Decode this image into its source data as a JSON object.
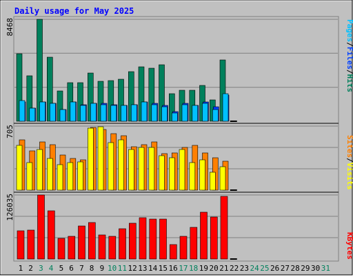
{
  "colors": {
    "background": "#c0c0c0",
    "title": "#0000ff",
    "hits": "#00805c",
    "files": "#0040ff",
    "pages": "#00c0ff",
    "visits": "#ffff00",
    "sites": "#ff8000",
    "kbytes": "#ff0000",
    "weekend_label": "#00805c",
    "weekday_label": "#000000",
    "grid": "#808080",
    "separator": "#000000"
  },
  "chart_data": [
    {
      "type": "bar",
      "title": "Daily usage for May 2025",
      "ymax_label": "8468",
      "ylim": [
        0,
        8468
      ],
      "grid": true,
      "legend_placement": "right",
      "legend_separator": "/",
      "categories": [
        "1",
        "2",
        "3",
        "4",
        "5",
        "6",
        "7",
        "8",
        "9",
        "10",
        "11",
        "12",
        "13",
        "14",
        "15",
        "16",
        "17",
        "18",
        "19",
        "20",
        "21",
        "22",
        "23",
        "24",
        "25",
        "26",
        "27",
        "28",
        "29",
        "30",
        "31"
      ],
      "weekend_days": [
        "3",
        "4",
        "10",
        "11",
        "17",
        "18",
        "24",
        "25",
        "31"
      ],
      "series": [
        {
          "name": "Hits",
          "color": "#00805c",
          "values": [
            5600,
            3800,
            8468,
            5300,
            2500,
            3200,
            3200,
            4000,
            3300,
            3400,
            3500,
            4100,
            4500,
            4400,
            4700,
            2300,
            2600,
            2600,
            3000,
            1800,
            5100,
            0,
            0,
            0,
            0,
            0,
            0,
            0,
            0,
            0,
            0
          ]
        },
        {
          "name": "Files",
          "color": "#0040ff",
          "values": [
            1600,
            1100,
            1600,
            1500,
            1000,
            1600,
            1400,
            1500,
            1500,
            1400,
            1300,
            1400,
            1600,
            1500,
            1300,
            800,
            1500,
            1300,
            1600,
            1200,
            2200,
            0,
            0,
            0,
            0,
            0,
            0,
            0,
            0,
            0,
            0
          ]
        },
        {
          "name": "Pages",
          "color": "#00c0ff",
          "values": [
            1700,
            1100,
            1600,
            1500,
            1000,
            1600,
            1300,
            1500,
            1400,
            1300,
            1300,
            1400,
            1600,
            1400,
            1200,
            700,
            1400,
            1300,
            1500,
            1000,
            2300,
            0,
            0,
            0,
            0,
            0,
            0,
            0,
            0,
            0,
            0
          ]
        }
      ]
    },
    {
      "type": "bar",
      "ymax_label": "705",
      "ylim": [
        0,
        705
      ],
      "grid": true,
      "legend_placement": "right",
      "legend_separator": "/",
      "categories": [
        "1",
        "2",
        "3",
        "4",
        "5",
        "6",
        "7",
        "8",
        "9",
        "10",
        "11",
        "12",
        "13",
        "14",
        "15",
        "16",
        "17",
        "18",
        "19",
        "20",
        "21",
        "22",
        "23",
        "24",
        "25",
        "26",
        "27",
        "28",
        "29",
        "30",
        "31"
      ],
      "series": [
        {
          "name": "Sites",
          "color": "#ff8000",
          "values": [
            550,
            430,
            530,
            500,
            390,
            350,
            330,
            690,
            670,
            620,
            600,
            480,
            500,
            530,
            400,
            410,
            470,
            490,
            410,
            360,
            320,
            0,
            0,
            0,
            0,
            0,
            0,
            0,
            0,
            0,
            0
          ]
        },
        {
          "name": "Visits",
          "color": "#ffff00",
          "values": [
            490,
            300,
            450,
            350,
            280,
            300,
            310,
            680,
            700,
            520,
            550,
            450,
            470,
            470,
            380,
            360,
            450,
            300,
            330,
            200,
            260,
            0,
            0,
            0,
            0,
            0,
            0,
            0,
            0,
            0,
            0
          ]
        }
      ]
    },
    {
      "type": "bar",
      "ymax_label": "126035",
      "ylim": [
        0,
        126035
      ],
      "grid": true,
      "legend_placement": "right",
      "categories": [
        "1",
        "2",
        "3",
        "4",
        "5",
        "6",
        "7",
        "8",
        "9",
        "10",
        "11",
        "12",
        "13",
        "14",
        "15",
        "16",
        "17",
        "18",
        "19",
        "20",
        "21",
        "22",
        "23",
        "24",
        "25",
        "26",
        "27",
        "28",
        "29",
        "30",
        "31"
      ],
      "series": [
        {
          "name": "KBytes",
          "color": "#ff0000",
          "values": [
            56000,
            57000,
            126035,
            95000,
            40000,
            45000,
            65000,
            72000,
            47000,
            45000,
            60000,
            70000,
            81000,
            78000,
            78000,
            28000,
            45000,
            62000,
            92000,
            82000,
            124000,
            0,
            0,
            0,
            0,
            0,
            0,
            0,
            0,
            0,
            0
          ]
        }
      ]
    }
  ]
}
